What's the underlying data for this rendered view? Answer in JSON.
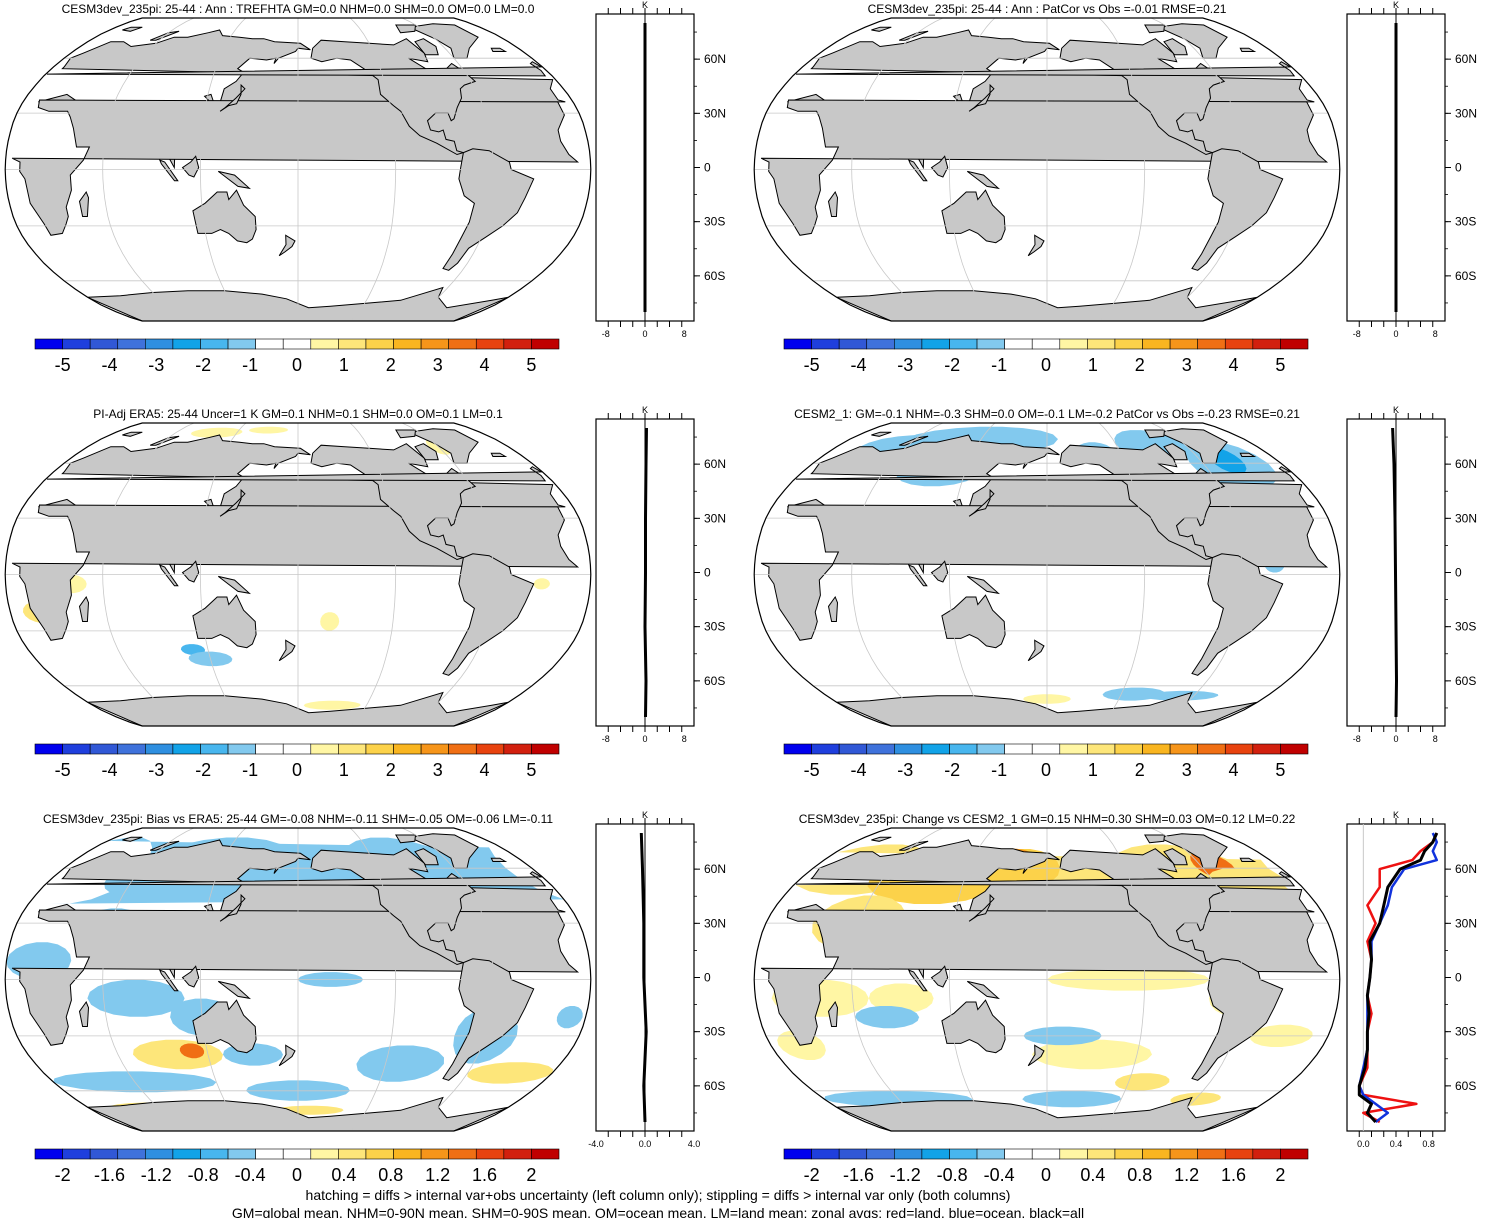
{
  "colors": {
    "land": "#c8c8c8",
    "coast": "#000000",
    "grid": "#c8c8c8",
    "zonal_land": "#ee1111",
    "zonal_ocean": "#1133dd",
    "zonal_all": "#000000",
    "palette": [
      "#0000ee",
      "#1f3fdd",
      "#3158d6",
      "#3f72db",
      "#2f8fe0",
      "#12a3e8",
      "#48b6ee",
      "#82c9ee",
      "#ffffff",
      "#ffffff",
      "#fff6a4",
      "#fde67a",
      "#fcd24a",
      "#f9b520",
      "#f6951a",
      "#f06f14",
      "#e8430f",
      "#d2200e",
      "#c00000"
    ]
  },
  "panels": [
    {
      "title": "CESM3dev_235pi: 25-44 : Ann : TREFHTA GM=0.0 NHM=0.0 SHM=0.0 OM=0.0 LM=0.0",
      "field": "none",
      "colorbar_labels": [
        "-5",
        "-4",
        "-3",
        "-2",
        "-1",
        "0",
        "1",
        "2",
        "3",
        "4",
        "5"
      ],
      "zonal": {
        "unit": "K",
        "xlim": [
          -10,
          10
        ],
        "xticks": [
          "-8",
          "0",
          "8"
        ],
        "lat_ticks": [
          "60N",
          "30N",
          "0",
          "30S",
          "60S"
        ],
        "style": "flat"
      }
    },
    {
      "title": "CESM3dev_235pi: 25-44 : Ann : PatCor vs Obs =-0.01 RMSE=0.21",
      "field": "none",
      "colorbar_labels": [
        "-5",
        "-4",
        "-3",
        "-2",
        "-1",
        "0",
        "1",
        "2",
        "3",
        "4",
        "5"
      ],
      "zonal": {
        "unit": "K",
        "xlim": [
          -10,
          10
        ],
        "xticks": [
          "-8",
          "0",
          "8"
        ],
        "lat_ticks": [
          "60N",
          "30N",
          "0",
          "30S",
          "60S"
        ],
        "style": "flat"
      }
    },
    {
      "title": "PI-Adj ERA5: 25-44 Uncer=1 K GM=0.1 NHM=0.1 SHM=0.0 OM=0.1 LM=0.1",
      "field": "obs",
      "colorbar_labels": [
        "-5",
        "-4",
        "-3",
        "-2",
        "-1",
        "0",
        "1",
        "2",
        "3",
        "4",
        "5"
      ],
      "zonal": {
        "unit": "K",
        "xlim": [
          -10,
          10
        ],
        "xticks": [
          "-8",
          "0",
          "8"
        ],
        "lat_ticks": [
          "60N",
          "30N",
          "0",
          "30S",
          "60S"
        ],
        "style": "small"
      }
    },
    {
      "title": "CESM2_1: GM=-0.1 NHM=-0.3 SHM=0.0 OM=-0.1 LM=-0.2 PatCor vs Obs =-0.23 RMSE=0.21",
      "field": "cesm2",
      "colorbar_labels": [
        "-5",
        "-4",
        "-3",
        "-2",
        "-1",
        "0",
        "1",
        "2",
        "3",
        "4",
        "5"
      ],
      "zonal": {
        "unit": "K",
        "xlim": [
          -10,
          10
        ],
        "xticks": [
          "-8",
          "0",
          "8"
        ],
        "lat_ticks": [
          "60N",
          "30N",
          "0",
          "30S",
          "60S"
        ],
        "style": "small"
      }
    },
    {
      "title": "CESM3dev_235pi: Bias vs ERA5: 25-44 GM=-0.08 NHM=-0.11 SHM=-0.05 OM=-0.06 LM=-0.11",
      "field": "bias",
      "colorbar_labels": [
        "-2",
        "-1.6",
        "-1.2",
        "-0.8",
        "-0.4",
        "0",
        "0.4",
        "0.8",
        "1.2",
        "1.6",
        "2"
      ],
      "zonal": {
        "unit": "K",
        "xlim": [
          -4,
          4
        ],
        "xticks": [
          "-4.0",
          "0.0",
          "4.0"
        ],
        "lat_ticks": [
          "60N",
          "30N",
          "0",
          "30S",
          "60S"
        ],
        "style": "small"
      }
    },
    {
      "title": "CESM3dev_235pi: Change vs CESM2_1 GM=0.15 NHM=0.30 SHM=0.03 OM=0.12 LM=0.22",
      "field": "change",
      "colorbar_labels": [
        "-2",
        "-1.6",
        "-1.2",
        "-0.8",
        "-0.4",
        "0",
        "0.4",
        "0.8",
        "1.2",
        "1.6",
        "2"
      ],
      "zonal": {
        "unit": "K",
        "xlim": [
          -0.2,
          1.0
        ],
        "xticks": [
          "0.0",
          "0.4",
          "0.8"
        ],
        "lat_ticks": [
          "60N",
          "30N",
          "0",
          "30S",
          "60S"
        ],
        "style": "change"
      }
    }
  ],
  "footer": [
    "hatching = diffs > internal var+obs uncertainty (left column only); stippling = diffs > internal var only (both columns)",
    "GM=global mean, NHM=0-90N mean, SHM=0-90S mean, OM=ocean mean, LM=land mean; zonal avgs: red=land, blue=ocean, black=all"
  ],
  "chart_data": [
    {
      "type": "heatmap",
      "title": "CESM3dev_235pi: 25-44 : Ann : TREFHTA GM=0.0 NHM=0.0 SHM=0.0 OM=0.0 LM=0.0",
      "colorbar_range": [
        -5,
        5
      ],
      "zonal_mean": {
        "xlabel": "K",
        "xlim": [
          -10,
          10
        ],
        "lat": [
          -80,
          80
        ],
        "land": [
          0,
          0
        ],
        "ocean": [
          0,
          0
        ],
        "all": [
          0,
          0
        ]
      }
    },
    {
      "type": "heatmap",
      "title": "CESM3dev_235pi: 25-44 : Ann : PatCor vs Obs =-0.01 RMSE=0.21",
      "colorbar_range": [
        -5,
        5
      ],
      "zonal_mean": {
        "xlabel": "K",
        "xlim": [
          -10,
          10
        ],
        "lat": [
          -80,
          80
        ],
        "land": [
          0,
          0
        ],
        "ocean": [
          0,
          0
        ],
        "all": [
          0,
          0
        ]
      }
    },
    {
      "type": "heatmap",
      "title": "PI-Adj ERA5: 25-44 Uncer=1 K GM=0.1 NHM=0.1 SHM=0.0 OM=0.1 LM=0.1",
      "colorbar_range": [
        -5,
        5
      ],
      "zonal_mean": {
        "xlabel": "K",
        "xlim": [
          -10,
          10
        ],
        "lat": [
          -80,
          -60,
          -30,
          0,
          30,
          60,
          80
        ],
        "all": [
          0.1,
          0.2,
          0.0,
          0.1,
          0.1,
          0.2,
          0.3
        ]
      }
    },
    {
      "type": "heatmap",
      "title": "CESM2_1: GM=-0.1 NHM=-0.3 SHM=0.0 OM=-0.1 LM=-0.2 PatCor vs Obs =-0.23 RMSE=0.21",
      "colorbar_range": [
        -5,
        5
      ],
      "zonal_mean": {
        "xlabel": "K",
        "xlim": [
          -10,
          10
        ],
        "lat": [
          -80,
          -60,
          -30,
          0,
          30,
          60,
          80
        ],
        "all": [
          0.0,
          0.1,
          0.0,
          -0.1,
          -0.2,
          -0.4,
          -0.7
        ]
      }
    },
    {
      "type": "heatmap",
      "title": "CESM3dev_235pi: Bias vs ERA5: 25-44 GM=-0.08 NHM=-0.11 SHM=-0.05 OM=-0.06 LM=-0.11",
      "colorbar_range": [
        -2,
        2
      ],
      "zonal_mean": {
        "xlabel": "K",
        "xlim": [
          -4,
          4
        ],
        "lat": [
          -80,
          -60,
          -30,
          0,
          30,
          60,
          80
        ],
        "all": [
          0.0,
          -0.1,
          0.1,
          -0.1,
          -0.1,
          -0.2,
          -0.3
        ]
      }
    },
    {
      "type": "heatmap",
      "title": "CESM3dev_235pi: Change vs CESM2_1 GM=0.15 NHM=0.30 SHM=0.03 OM=0.12 LM=0.22",
      "colorbar_range": [
        -2,
        2
      ],
      "zonal_mean": {
        "xlabel": "K",
        "xlim": [
          -0.2,
          1.0
        ],
        "lat": [
          -80,
          -75,
          -70,
          -65,
          -60,
          -50,
          -40,
          -30,
          -20,
          -10,
          0,
          10,
          20,
          30,
          40,
          50,
          60,
          65,
          70,
          75,
          80
        ],
        "land": [
          0.2,
          0.0,
          0.65,
          0.0,
          -0.05,
          0.05,
          0.05,
          0.05,
          0.1,
          0.05,
          0.08,
          0.1,
          0.05,
          0.15,
          0.05,
          0.2,
          0.2,
          0.6,
          0.7,
          0.85,
          0.9
        ],
        "ocean": [
          0.15,
          0.3,
          0.15,
          0.0,
          -0.05,
          0.0,
          0.05,
          0.05,
          0.05,
          0.05,
          0.08,
          0.1,
          0.1,
          0.2,
          0.3,
          0.35,
          0.5,
          0.9,
          0.85,
          0.9,
          0.85
        ],
        "all": [
          0.15,
          0.05,
          0.1,
          -0.05,
          -0.05,
          0.02,
          0.05,
          0.05,
          0.07,
          0.05,
          0.08,
          0.1,
          0.08,
          0.2,
          0.25,
          0.3,
          0.45,
          0.7,
          0.75,
          0.85,
          0.9
        ]
      }
    }
  ]
}
